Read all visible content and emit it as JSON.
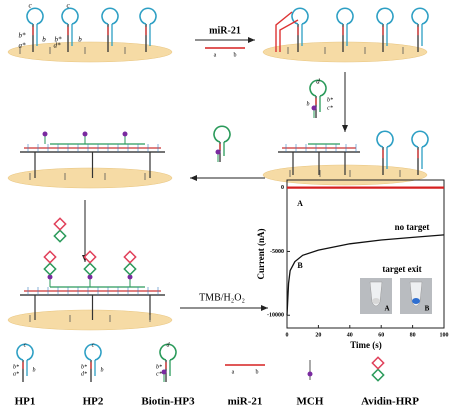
{
  "hp_labels": [
    "c",
    "c",
    "b*",
    "a*",
    "b",
    "b*",
    "d*",
    "b"
  ],
  "mir_arrow": {
    "label": "miR-21",
    "a": "a",
    "b": "b"
  },
  "hp3_step": {
    "d": "d",
    "b": "b",
    "b_star": "b*",
    "c_star": "c*"
  },
  "tmb": "TMB/H₂O₂",
  "plot": {
    "ylabel": "Current (nA)",
    "xlabel": "Time (s)",
    "xlim": [
      0,
      100
    ],
    "ylim": [
      -11000,
      600
    ],
    "xticks": [
      0,
      20,
      40,
      60,
      80,
      100
    ],
    "yticks": [
      0,
      -5000,
      -10000
    ],
    "series": [
      {
        "name": "A",
        "color": "#d62020",
        "x": [
          0,
          100
        ],
        "values": [
          0,
          0
        ]
      },
      {
        "name": "B",
        "color": "#111111",
        "x": [
          0,
          1,
          2,
          5,
          10,
          20,
          40,
          60,
          80,
          100
        ],
        "values": [
          -10000,
          -7500,
          -6500,
          -5800,
          -5300,
          -4900,
          -4400,
          -4100,
          -3900,
          -3700
        ]
      }
    ],
    "annotations": [
      "no target",
      "target exit"
    ],
    "inset_labels": [
      "A",
      "B"
    ]
  },
  "legend": [
    {
      "name": "HP1",
      "letters": [
        "c",
        "b*",
        "a*",
        "b"
      ]
    },
    {
      "name": "HP2",
      "letters": [
        "c",
        "b*",
        "d*",
        "b"
      ]
    },
    {
      "name": "Biotin-HP3",
      "letters": [
        "d",
        "b*",
        "c*"
      ]
    },
    {
      "name": "miR-21",
      "letters": [
        "a",
        "b"
      ]
    },
    {
      "name": "MCH",
      "letters": []
    },
    {
      "name": "Avidin-HRP",
      "letters": []
    }
  ]
}
